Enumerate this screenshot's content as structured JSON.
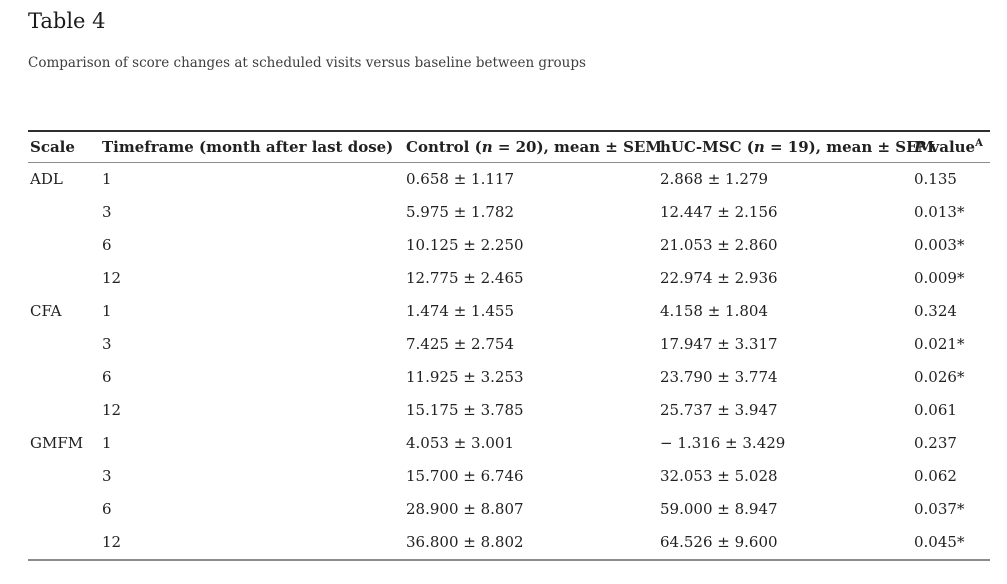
{
  "page": {
    "title": "Table 4",
    "caption": "Comparison of score changes at scheduled visits versus baseline between groups"
  },
  "colors": {
    "text": "#212121",
    "caption_text": "#3d3d3d",
    "rule_dark": "#2e2e2e",
    "rule_light": "#8c8c8c",
    "background": "#ffffff"
  },
  "table": {
    "columns": [
      {
        "key": "scale",
        "label": "Scale"
      },
      {
        "key": "timeframe",
        "label": "Timeframe (month after last dose)"
      },
      {
        "key": "control",
        "label_parts": [
          {
            "t": "Control ("
          },
          {
            "t": "n",
            "i": true
          },
          {
            "t": " = 20), mean ± SEM"
          }
        ]
      },
      {
        "key": "hucmsc",
        "label_parts": [
          {
            "t": "hUC-MSC ("
          },
          {
            "t": "n",
            "i": true
          },
          {
            "t": " = 19), mean ± SEM"
          }
        ]
      },
      {
        "key": "pvalue",
        "label_parts": [
          {
            "t": "P",
            "i": true
          },
          {
            "t": " value"
          },
          {
            "t": "A",
            "sup": true
          }
        ]
      }
    ],
    "rows": [
      {
        "scale": "ADL",
        "timeframe": "1",
        "control": "0.658 ± 1.117",
        "hucmsc": "2.868 ± 1.279",
        "pvalue": "0.135"
      },
      {
        "scale": "",
        "timeframe": "3",
        "control": "5.975 ± 1.782",
        "hucmsc": "12.447 ± 2.156",
        "pvalue": "0.013*"
      },
      {
        "scale": "",
        "timeframe": "6",
        "control": "10.125 ± 2.250",
        "hucmsc": "21.053 ± 2.860",
        "pvalue": "0.003*"
      },
      {
        "scale": "",
        "timeframe": "12",
        "control": "12.775 ± 2.465",
        "hucmsc": "22.974 ± 2.936",
        "pvalue": "0.009*"
      },
      {
        "scale": "CFA",
        "timeframe": "1",
        "control": "1.474 ± 1.455",
        "hucmsc": "4.158 ± 1.804",
        "pvalue": "0.324"
      },
      {
        "scale": "",
        "timeframe": "3",
        "control": "7.425 ± 2.754",
        "hucmsc": "17.947 ± 3.317",
        "pvalue": "0.021*"
      },
      {
        "scale": "",
        "timeframe": "6",
        "control": "11.925 ± 3.253",
        "hucmsc": "23.790 ± 3.774",
        "pvalue": "0.026*"
      },
      {
        "scale": "",
        "timeframe": "12",
        "control": "15.175 ± 3.785",
        "hucmsc": "25.737 ± 3.947",
        "pvalue": "0.061"
      },
      {
        "scale": "GMFM",
        "timeframe": "1",
        "control": "4.053 ± 3.001",
        "hucmsc": "− 1.316 ± 3.429",
        "pvalue": "0.237"
      },
      {
        "scale": "",
        "timeframe": "3",
        "control": "15.700 ± 6.746",
        "hucmsc": "32.053 ± 5.028",
        "pvalue": "0.062"
      },
      {
        "scale": "",
        "timeframe": "6",
        "control": "28.900 ± 8.807",
        "hucmsc": "59.000 ± 8.947",
        "pvalue": "0.037*"
      },
      {
        "scale": "",
        "timeframe": "12",
        "control": "36.800 ± 8.802",
        "hucmsc": "64.526 ± 9.600",
        "pvalue": "0.045*"
      }
    ]
  }
}
